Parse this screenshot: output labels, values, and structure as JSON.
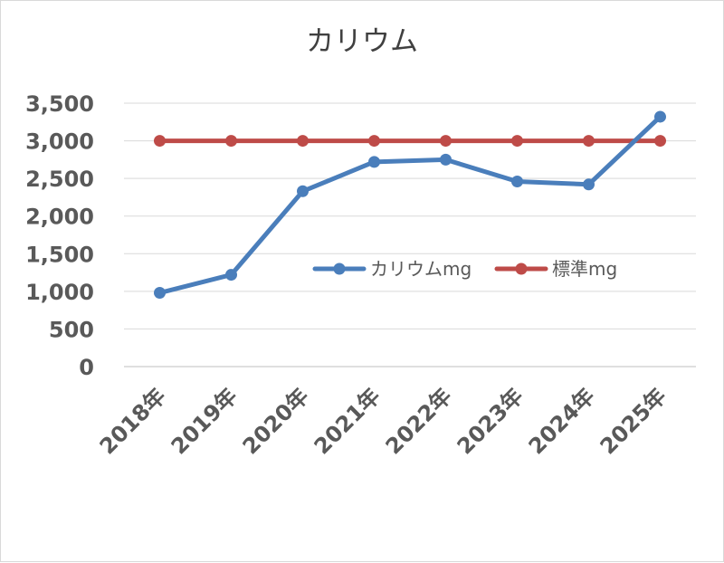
{
  "chart_data": {
    "type": "line",
    "title": "カリウム",
    "categories": [
      "2018年",
      "2019年",
      "2020年",
      "2021年",
      "2022年",
      "2023年",
      "2024年",
      "2025年"
    ],
    "series": [
      {
        "name": "カリウムmg",
        "color": "#4a7ebb",
        "values": [
          980,
          1220,
          2330,
          2720,
          2750,
          2460,
          2420,
          3320
        ]
      },
      {
        "name": "標準mg",
        "color": "#be4b48",
        "values": [
          3000,
          3000,
          3000,
          3000,
          3000,
          3000,
          3000,
          3000
        ]
      }
    ],
    "yticks": [
      "0",
      "500",
      "1,000",
      "1,500",
      "2,000",
      "2,500",
      "3,000",
      "3,500"
    ],
    "ylim": [
      0,
      3500
    ],
    "grid": true,
    "legend_position": "center-right"
  }
}
